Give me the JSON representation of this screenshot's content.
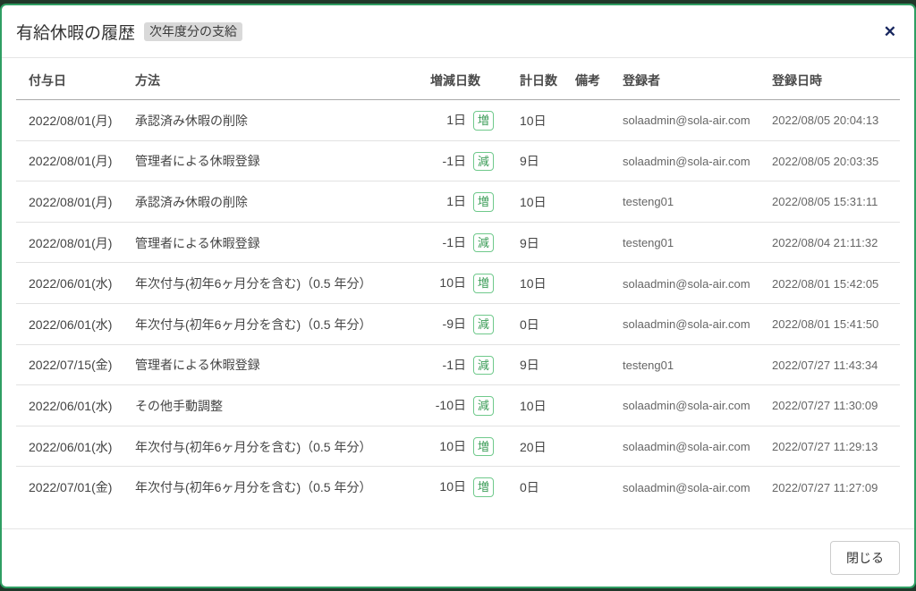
{
  "colors": {
    "accent_green": "#2f9e63",
    "chip_green": "#3f9e5a",
    "chip_border": "#6fc98b",
    "close_navy": "#17265e",
    "title_badge_bg": "#d9d9d9",
    "backdrop": "#21382a"
  },
  "modal": {
    "title": "有給休暇の履歴",
    "title_badge": "次年度分の支給",
    "close_icon": "✕"
  },
  "table": {
    "headers": [
      "付与日",
      "方法",
      "増減日数",
      "計日数",
      "備考",
      "登録者",
      "登録日時"
    ],
    "rows": [
      {
        "grant_date": "2022/08/01(月)",
        "method": "承認済み休暇の削除",
        "change": "1日",
        "change_badge": "増",
        "total": "10日",
        "note": "",
        "registrant": "solaadmin@sola-air.com",
        "registered_at": "2022/08/05 20:04:13"
      },
      {
        "grant_date": "2022/08/01(月)",
        "method": "管理者による休暇登録",
        "change": "-1日",
        "change_badge": "減",
        "total": "9日",
        "note": "",
        "registrant": "solaadmin@sola-air.com",
        "registered_at": "2022/08/05 20:03:35"
      },
      {
        "grant_date": "2022/08/01(月)",
        "method": "承認済み休暇の削除",
        "change": "1日",
        "change_badge": "増",
        "total": "10日",
        "note": "",
        "registrant": "testeng01",
        "registered_at": "2022/08/05 15:31:11"
      },
      {
        "grant_date": "2022/08/01(月)",
        "method": "管理者による休暇登録",
        "change": "-1日",
        "change_badge": "減",
        "total": "9日",
        "note": "",
        "registrant": "testeng01",
        "registered_at": "2022/08/04 21:11:32"
      },
      {
        "grant_date": "2022/06/01(水)",
        "method": "年次付与(初年6ヶ月分を含む)（0.5 年分）",
        "change": "10日",
        "change_badge": "増",
        "total": "10日",
        "note": "",
        "registrant": "solaadmin@sola-air.com",
        "registered_at": "2022/08/01 15:42:05"
      },
      {
        "grant_date": "2022/06/01(水)",
        "method": "年次付与(初年6ヶ月分を含む)（0.5 年分）",
        "change": "-9日",
        "change_badge": "減",
        "total": "0日",
        "note": "",
        "registrant": "solaadmin@sola-air.com",
        "registered_at": "2022/08/01 15:41:50"
      },
      {
        "grant_date": "2022/07/15(金)",
        "method": "管理者による休暇登録",
        "change": "-1日",
        "change_badge": "減",
        "total": "9日",
        "note": "",
        "registrant": "testeng01",
        "registered_at": "2022/07/27 11:43:34"
      },
      {
        "grant_date": "2022/06/01(水)",
        "method": "その他手動調整",
        "change": "-10日",
        "change_badge": "減",
        "total": "10日",
        "note": "",
        "registrant": "solaadmin@sola-air.com",
        "registered_at": "2022/07/27 11:30:09"
      },
      {
        "grant_date": "2022/06/01(水)",
        "method": "年次付与(初年6ヶ月分を含む)（0.5 年分）",
        "change": "10日",
        "change_badge": "増",
        "total": "20日",
        "note": "",
        "registrant": "solaadmin@sola-air.com",
        "registered_at": "2022/07/27 11:29:13"
      },
      {
        "grant_date": "2022/07/01(金)",
        "method": "年次付与(初年6ヶ月分を含む)（0.5 年分）",
        "change": "10日",
        "change_badge": "増",
        "total": "0日",
        "note": "",
        "registrant": "solaadmin@sola-air.com",
        "registered_at": "2022/07/27 11:27:09"
      }
    ]
  },
  "footer": {
    "close_label": "閉じる"
  }
}
